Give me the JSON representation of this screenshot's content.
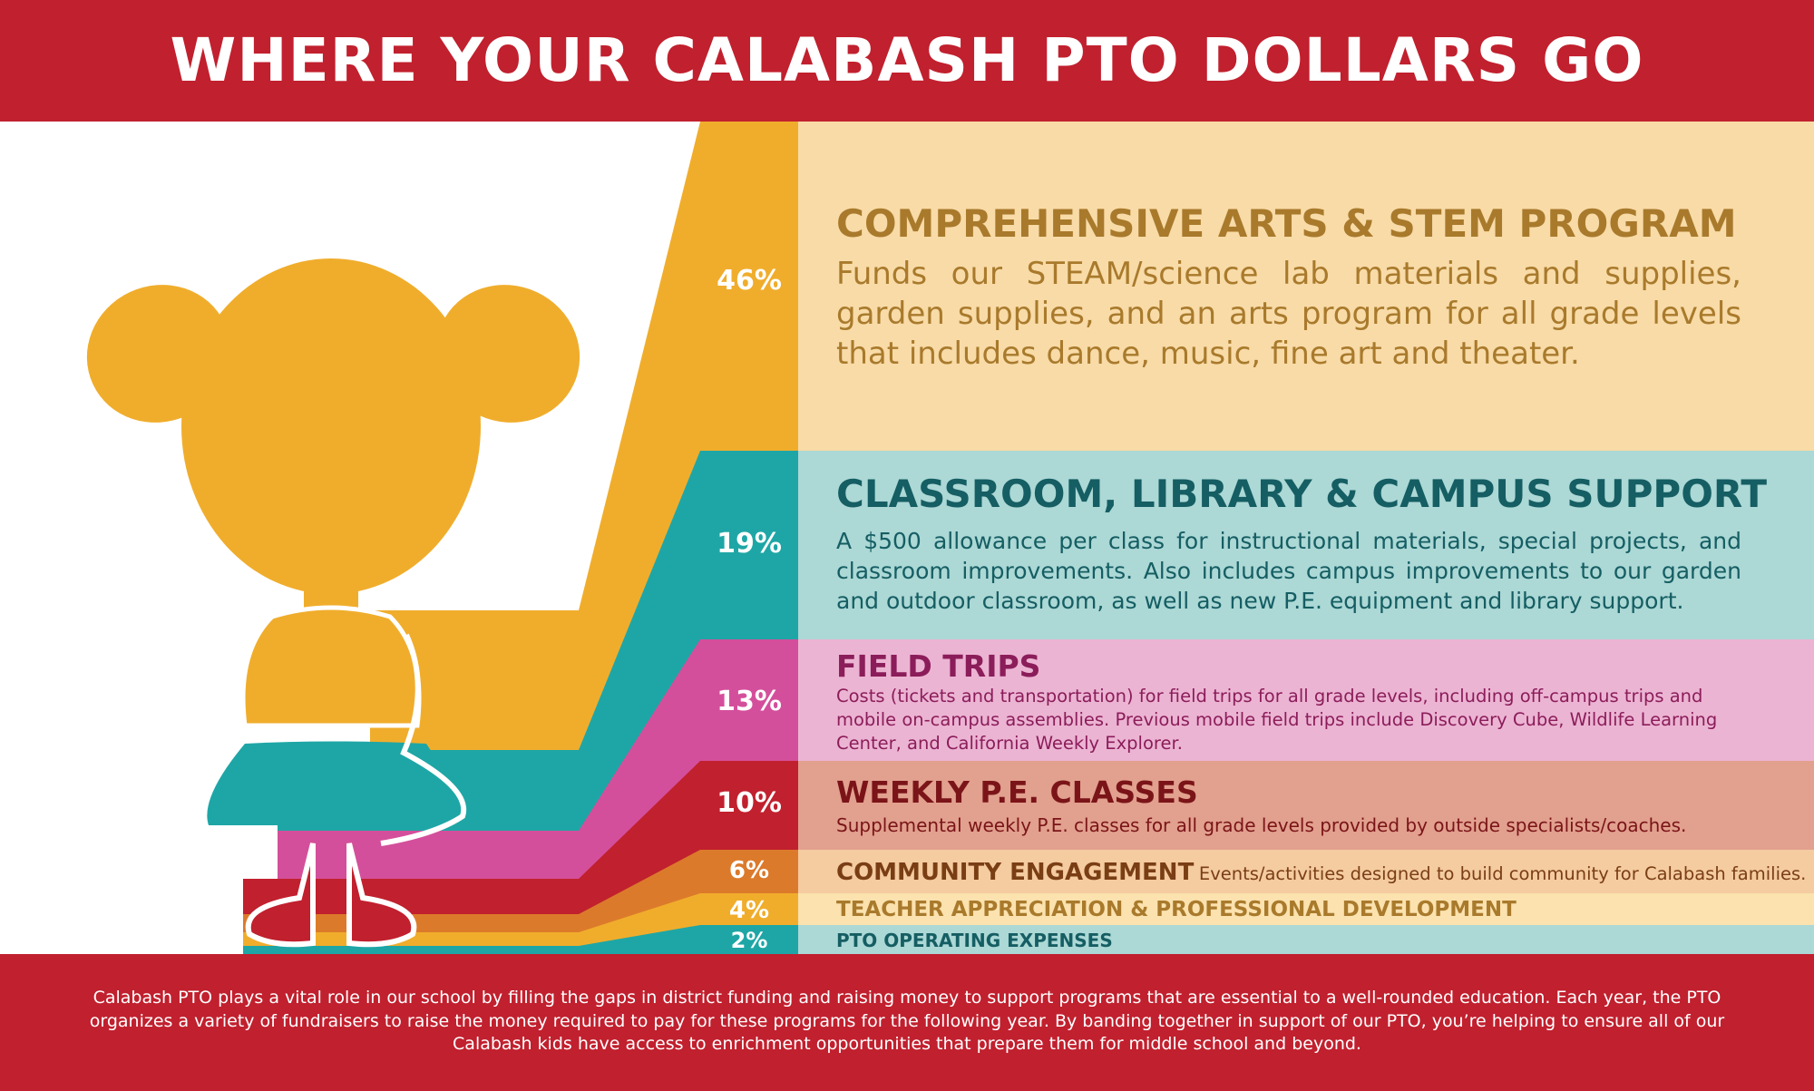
{
  "title": "WHERE YOUR CALABASH PTO DOLLARS GO",
  "items": [
    {
      "percent": "46%",
      "heading": "COMPREHENSIVE ARTS & STEM PROGRAM",
      "description": "Funds our STEAM/science lab materials and supplies, garden supplies, and an arts program for all grade levels that includes dance, music, fine art and theater."
    },
    {
      "percent": "19%",
      "heading": "CLASSROOM, LIBRARY & CAMPUS SUPPORT",
      "description": "A $500 allowance per class for instructional materials, special projects, and classroom improvements. Also includes campus improvements to our garden and outdoor classroom, as well as new P.E. equipment and library support."
    },
    {
      "percent": "13%",
      "heading": "FIELD TRIPS",
      "description": "Costs (tickets and transportation) for field trips for all grade levels, including off-campus trips and mobile on-campus assemblies. Previous mobile field trips include Discovery Cube, Wildlife Learning Center, and California Weekly Explorer."
    },
    {
      "percent": "10%",
      "heading": "WEEKLY P.E. CLASSES",
      "description": "Supplemental weekly P.E. classes for all grade levels provided by outside specialists/coaches."
    },
    {
      "percent": "6%",
      "heading": "COMMUNITY ENGAGEMENT",
      "description": "Events/activities designed to build community for Calabash families."
    },
    {
      "percent": "4%",
      "heading": "TEACHER APPRECIATION & PROFESSIONAL DEVELOPMENT"
    },
    {
      "percent": "2%",
      "heading": "PTO OPERATING EXPENSES"
    }
  ],
  "footer": "Calabash PTO plays a vital role in our school by filling the gaps in district funding and raising money to support programs that are essential to a well-rounded education. Each year, the PTO organizes a variety of fundraisers to raise the money required to pay for these programs for the following year. By banding together in support of our PTO, you’re helping to ensure all of our Calabash kids have access to enrichment opportunities that prepare them for middle school and beyond."
}
